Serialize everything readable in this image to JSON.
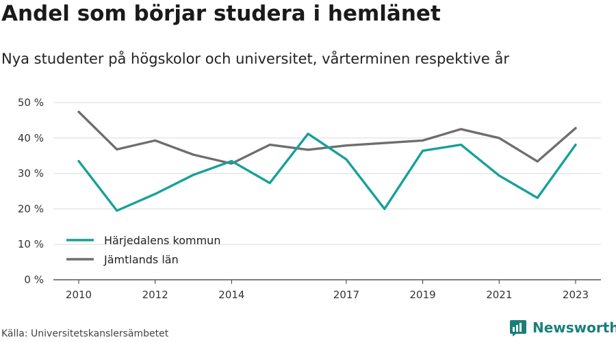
{
  "title": "Andel som börjar studera i hemlänet",
  "subtitle": "Nya studenter på högskolor och universitet, vårterminen respektive år",
  "source": "Källa: Universitetskanslersämbetet",
  "brand": {
    "name": "Newsworthy",
    "icon": "newsworthy-logo-icon",
    "color": "#1a7f7a"
  },
  "chart_data": {
    "type": "line",
    "title": "Andel som börjar studera i hemlänet",
    "subtitle": "Nya studenter på högskolor och universitet, vårterminen respektive år",
    "xlabel": "",
    "ylabel": "",
    "x": [
      2010,
      2011,
      2012,
      2013,
      2014,
      2015,
      2016,
      2017,
      2018,
      2019,
      2020,
      2021,
      2022,
      2023
    ],
    "x_ticks": [
      2010,
      2012,
      2014,
      2017,
      2019,
      2021,
      2023
    ],
    "x_tick_labels": [
      "2010",
      "2012",
      "2014",
      "2017",
      "2019",
      "2021",
      "2023"
    ],
    "xlim": [
      2010,
      2023
    ],
    "ylim": [
      0,
      50
    ],
    "y_ticks": [
      0,
      10,
      20,
      30,
      40,
      50
    ],
    "y_tick_labels": [
      "0 %",
      "10 %",
      "20 %",
      "30 %",
      "40 %",
      "50 %"
    ],
    "grid": true,
    "legend_position": "bottom-left",
    "series": [
      {
        "name": "Härjedalens kommun",
        "color": "#16a199",
        "values": [
          33.5,
          19.5,
          24.2,
          29.6,
          33.5,
          27.3,
          41.2,
          34.0,
          20.0,
          36.4,
          38.1,
          29.4,
          23.1,
          38.1
        ]
      },
      {
        "name": "Jämtlands län",
        "color": "#6e6e6e",
        "values": [
          47.4,
          36.8,
          39.3,
          35.3,
          32.8,
          38.1,
          36.7,
          37.9,
          38.6,
          39.3,
          42.5,
          40.0,
          33.4,
          42.8
        ]
      }
    ]
  }
}
